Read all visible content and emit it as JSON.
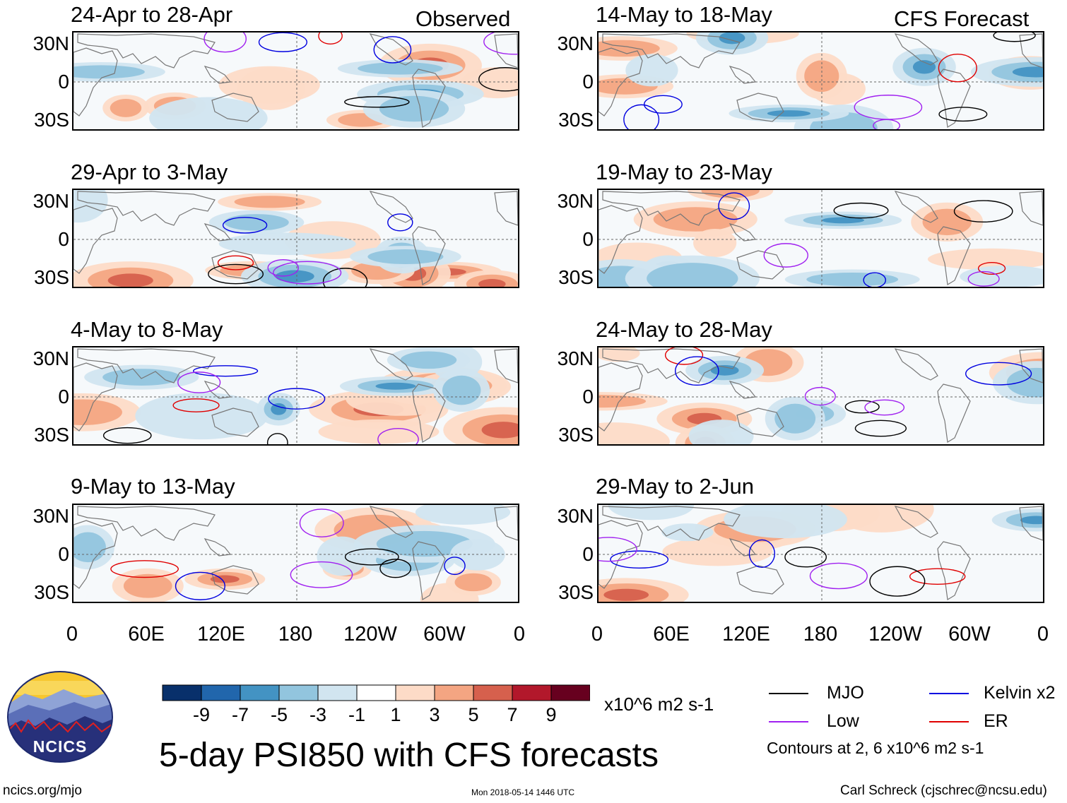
{
  "header": {
    "left_label": "Observed",
    "right_label": "CFS Forecast"
  },
  "panels": [
    {
      "title": "24-Apr to 28-Apr",
      "kind": "observed"
    },
    {
      "title": "29-Apr to 3-May",
      "kind": "observed"
    },
    {
      "title": "4-May to 8-May",
      "kind": "observed"
    },
    {
      "title": "9-May to 13-May",
      "kind": "observed"
    },
    {
      "title": "14-May to 18-May",
      "kind": "forecast"
    },
    {
      "title": "19-May to 23-May",
      "kind": "forecast"
    },
    {
      "title": "24-May to 28-May",
      "kind": "forecast"
    },
    {
      "title": "29-May to 2-Jun",
      "kind": "forecast"
    }
  ],
  "latitude_labels": [
    "30N",
    "0",
    "30S"
  ],
  "longitude_labels": [
    "0",
    "60E",
    "120E",
    "180",
    "120W",
    "60W",
    "0"
  ],
  "colorbar": {
    "colors": [
      "#08306b",
      "#2166ac",
      "#4393c3",
      "#92c5de",
      "#d1e5f0",
      "#ffffff",
      "#fddbc7",
      "#f4a582",
      "#d6604d",
      "#b2182b",
      "#67001f"
    ],
    "tick_labels": [
      "-9",
      "-7",
      "-5",
      "-3",
      "-1",
      "1",
      "3",
      "5",
      "7",
      "9"
    ],
    "units": "x10^6 m2 s-1"
  },
  "legend": {
    "items": [
      {
        "label": "MJO",
        "color": "#000000"
      },
      {
        "label": "Kelvin x2",
        "color": "#0000e0"
      },
      {
        "label": "Low",
        "color": "#a020f0"
      },
      {
        "label": "ER",
        "color": "#e00000"
      }
    ],
    "contours_note": "Contours at 2, 6 x10^6 m2 s-1"
  },
  "footer": {
    "main_title": "5-day PSI850 with CFS forecasts",
    "logo_text": "NCICS",
    "url": "ncics.org/mjo",
    "timestamp": "Mon 2018-05-14 1446 UTC",
    "credit": "Carl Schreck (cjschrec@ncsu.edu)"
  }
}
